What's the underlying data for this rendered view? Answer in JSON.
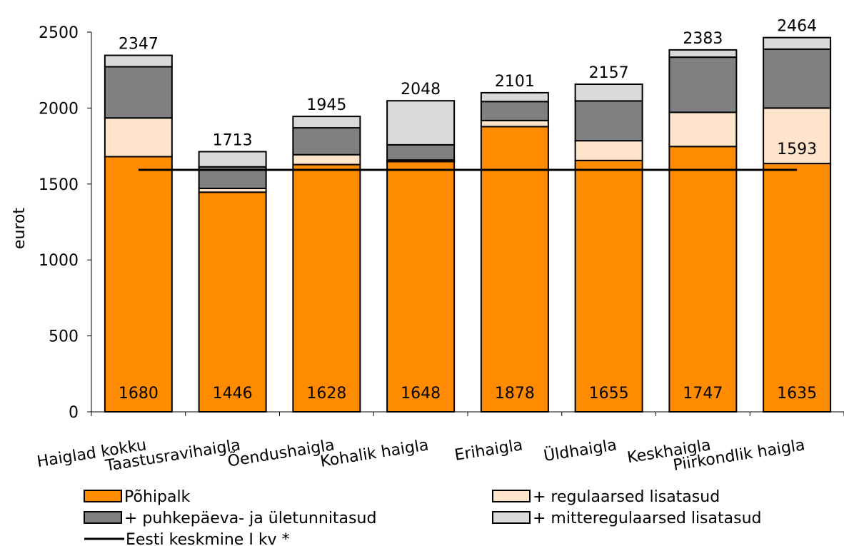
{
  "chart_data": {
    "type": "bar",
    "stacked": true,
    "ylabel": "eurot",
    "ylim": [
      0,
      2500
    ],
    "yticks": [
      0,
      500,
      1000,
      1500,
      2000,
      2500
    ],
    "categories": [
      "Haiglad kokku",
      "Taastusravihaigla",
      "Õendushaigla",
      "Kohalik haigla",
      "Erihaigla",
      "Üldhaigla",
      "Keskhaigla",
      "Piirkondlik haigla"
    ],
    "series": [
      {
        "name": "Põhipalk",
        "color": "#FF8C00",
        "values": [
          1680,
          1446,
          1628,
          1648,
          1878,
          1655,
          1747,
          1635
        ]
      },
      {
        "name": "+ regulaarsed lisatasud",
        "color": "#FFE4CC",
        "values": [
          255,
          25,
          65,
          10,
          40,
          130,
          225,
          365
        ]
      },
      {
        "name": "+ puhkepäeva- ja ületunnitasud",
        "color": "#808080",
        "values": [
          337,
          142,
          177,
          100,
          125,
          262,
          363,
          388
        ]
      },
      {
        "name": "+ mitteregulaarsed lisatasud",
        "color": "#D9D9D9",
        "values": [
          75,
          100,
          75,
          290,
          58,
          110,
          48,
          76
        ]
      }
    ],
    "totals": [
      2347,
      1713,
      1945,
      2048,
      2101,
      2157,
      2383,
      2464
    ],
    "reference_line": {
      "name": "Eesti keskmine I kv *",
      "value": 1593,
      "label": "1593",
      "color": "#000000"
    },
    "legend_position": "bottom",
    "grid": false
  }
}
